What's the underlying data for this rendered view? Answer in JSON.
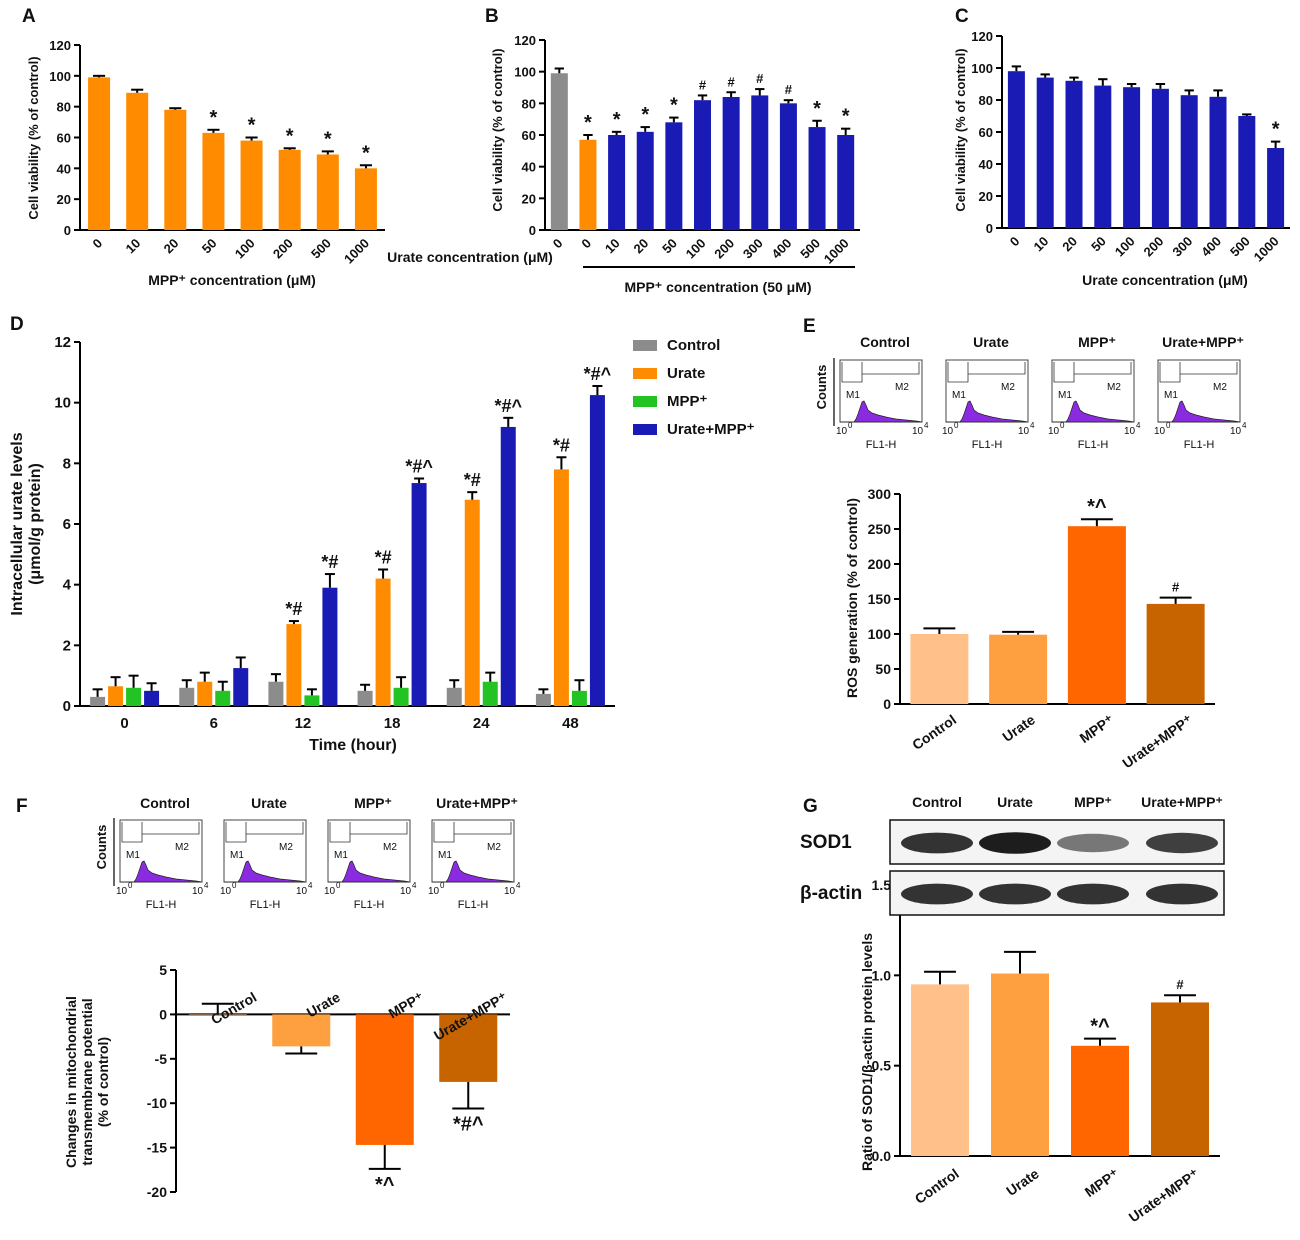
{
  "colors": {
    "orange": "#ff8c00",
    "blue": "#1a1ab4",
    "gray": "#8c8c8c",
    "green": "#22c322",
    "light_orange": "#ffc08a",
    "mid_orange": "#ffa040",
    "dark_orange": "#ff6600",
    "brown_orange": "#c86400",
    "histogram": "#8a2be2"
  },
  "chart_data": [
    {
      "id": "A",
      "type": "bar",
      "panel_label": "A",
      "ylabel": "Cell viability (% of control)",
      "xlabel": "MPP⁺ concentration (μM)",
      "ylim": [
        0,
        120
      ],
      "yticks": [
        "0",
        "20",
        "40",
        "60",
        "80",
        "100",
        "120"
      ],
      "categories": [
        "0",
        "10",
        "20",
        "50",
        "100",
        "200",
        "500",
        "1000"
      ],
      "values": [
        99,
        89,
        78,
        63,
        58,
        52,
        49,
        40
      ],
      "errors": [
        1,
        2,
        1,
        2,
        2,
        1,
        2,
        2
      ],
      "annotations": [
        "",
        "",
        "",
        "*",
        "*",
        "*",
        "*",
        "*"
      ]
    },
    {
      "id": "B",
      "type": "bar",
      "panel_label": "B",
      "ylabel": "Cell viability (% of control)",
      "xlabel": "Urate concentration (μM)",
      "group_label": "MPP⁺ concentration (50 μM)",
      "ylim": [
        0,
        120
      ],
      "yticks": [
        "0",
        "20",
        "40",
        "60",
        "80",
        "100",
        "120"
      ],
      "categories": [
        "0",
        "0",
        "10",
        "20",
        "50",
        "100",
        "200",
        "300",
        "400",
        "500",
        "1000"
      ],
      "values": [
        99,
        57,
        60,
        62,
        68,
        82,
        84,
        85,
        80,
        65,
        60
      ],
      "errors": [
        3,
        3,
        2,
        3,
        3,
        3,
        3,
        4,
        2,
        4,
        4
      ],
      "annotations": [
        "",
        "*",
        "*",
        "*",
        "*",
        "#",
        "#",
        "#",
        "#",
        "*",
        "*"
      ]
    },
    {
      "id": "C",
      "type": "bar",
      "panel_label": "C",
      "ylabel": "Cell viability (% of control)",
      "xlabel": "Urate concentration (μM)",
      "ylim": [
        0,
        120
      ],
      "yticks": [
        "0",
        "20",
        "40",
        "60",
        "80",
        "100",
        "120"
      ],
      "categories": [
        "0",
        "10",
        "20",
        "50",
        "100",
        "200",
        "300",
        "400",
        "500",
        "1000"
      ],
      "values": [
        98,
        94,
        92,
        89,
        88,
        87,
        83,
        82,
        70,
        50
      ],
      "errors": [
        3,
        2,
        2,
        4,
        2,
        3,
        3,
        4,
        1,
        4
      ],
      "annotations": [
        "",
        "",
        "",
        "",
        "",
        "",
        "",
        "",
        "",
        "*"
      ]
    },
    {
      "id": "D",
      "type": "bar",
      "panel_label": "D",
      "ylabel": "Intracellular urate levels (μmol/g protein)",
      "xlabel": "Time (hour)",
      "ylim": [
        0,
        12
      ],
      "yticks": [
        "0",
        "2",
        "4",
        "6",
        "8",
        "10",
        "12"
      ],
      "categories": [
        "0",
        "6",
        "12",
        "18",
        "24",
        "48"
      ],
      "series": [
        {
          "name": "Control",
          "values": [
            0.3,
            0.6,
            0.8,
            0.5,
            0.6,
            0.4
          ],
          "errors": [
            0.25,
            0.25,
            0.25,
            0.2,
            0.25,
            0.15
          ],
          "annotations": [
            "",
            "",
            "",
            "",
            "",
            ""
          ]
        },
        {
          "name": "Urate",
          "values": [
            0.65,
            0.8,
            2.7,
            4.2,
            6.8,
            7.8
          ],
          "errors": [
            0.3,
            0.3,
            0.1,
            0.3,
            0.25,
            0.4
          ],
          "annotations": [
            "",
            "",
            "*#",
            "*#",
            "*#",
            "*#"
          ]
        },
        {
          "name": "MPP⁺",
          "values": [
            0.6,
            0.5,
            0.35,
            0.6,
            0.8,
            0.5
          ],
          "errors": [
            0.4,
            0.3,
            0.2,
            0.35,
            0.3,
            0.35
          ],
          "annotations": [
            "",
            "",
            "",
            "",
            "",
            ""
          ]
        },
        {
          "name": "Urate+MPP⁺",
          "values": [
            0.5,
            1.25,
            3.9,
            7.35,
            9.2,
            10.25
          ],
          "errors": [
            0.25,
            0.35,
            0.45,
            0.15,
            0.3,
            0.3
          ],
          "annotations": [
            "",
            "",
            "*#",
            "*#^",
            "*#^",
            "*#^"
          ]
        }
      ],
      "legend": [
        "Control",
        "Urate",
        "MPP⁺",
        "Urate+MPP⁺"
      ],
      "legend_position": "top-right"
    },
    {
      "id": "E",
      "type": "bar",
      "panel_label": "E",
      "ylabel": "ROS generation (% of control)",
      "xlabel": "",
      "ylim": [
        0,
        300
      ],
      "yticks": [
        "0",
        "50",
        "100",
        "150",
        "200",
        "250",
        "300"
      ],
      "categories": [
        "Control",
        "Urate",
        "MPP⁺",
        "Urate+MPP⁺"
      ],
      "values": [
        100,
        99,
        254,
        143
      ],
      "errors": [
        8,
        4,
        10,
        9
      ],
      "annotations": [
        "",
        "",
        "*^",
        "#"
      ]
    },
    {
      "id": "F",
      "type": "bar",
      "panel_label": "F",
      "ylabel": "Changes in mitochondrial transmembrane potential (% of control)",
      "ylabel_lines": [
        "Changes in mitochondrial",
        "transmembrane potential",
        "(% of control)"
      ],
      "xlabel": "",
      "ylim": [
        -20,
        5
      ],
      "yticks": [
        "-20",
        "-15",
        "-10",
        "-5",
        "0",
        "5"
      ],
      "categories": [
        "Control",
        "Urate",
        "MPP⁺",
        "Urate+MPP⁺"
      ],
      "values": [
        0,
        -3.6,
        -14.7,
        -7.6
      ],
      "errors": [
        1.2,
        0.8,
        2.7,
        3.0
      ],
      "annotations": [
        "",
        "",
        "*^",
        "*#^"
      ]
    },
    {
      "id": "G",
      "type": "bar",
      "panel_label": "G",
      "ylabel": "Ratio of SOD1/β-actin protein levels",
      "xlabel": "",
      "ylim": [
        0,
        1.5
      ],
      "yticks": [
        "0.0",
        "0.5",
        "1.0",
        "1.5"
      ],
      "categories": [
        "Control",
        "Urate",
        "MPP⁺",
        "Urate+MPP⁺"
      ],
      "values": [
        0.95,
        1.01,
        0.61,
        0.85
      ],
      "errors": [
        0.07,
        0.12,
        0.04,
        0.04
      ],
      "annotations": [
        "",
        "",
        "*^",
        "#"
      ]
    }
  ],
  "flow_panels": {
    "E": {
      "titles": [
        "Control",
        "Urate",
        "MPP⁺",
        "Urate+MPP⁺"
      ],
      "y_label": "Counts",
      "x_label": "FL1-H",
      "x_min": "10",
      "x_min_exp": "0",
      "x_max": "10",
      "x_max_exp": "4",
      "gates": [
        "M1",
        "M2"
      ]
    },
    "F": {
      "titles": [
        "Control",
        "Urate",
        "MPP⁺",
        "Urate+MPP⁺"
      ],
      "y_label": "Counts",
      "x_label": "FL1-H",
      "x_min": "10",
      "x_min_exp": "0",
      "x_max": "10",
      "x_max_exp": "4",
      "gates": [
        "M1",
        "M2"
      ]
    }
  },
  "western_blot": {
    "lane_labels": [
      "Control",
      "Urate",
      "MPP⁺",
      "Urate+MPP⁺"
    ],
    "rows": [
      {
        "label": "SOD1",
        "band_intensity": [
          0.85,
          0.95,
          0.55,
          0.8
        ]
      },
      {
        "label": "β-actin",
        "band_intensity": [
          0.85,
          0.85,
          0.85,
          0.85
        ]
      }
    ]
  }
}
